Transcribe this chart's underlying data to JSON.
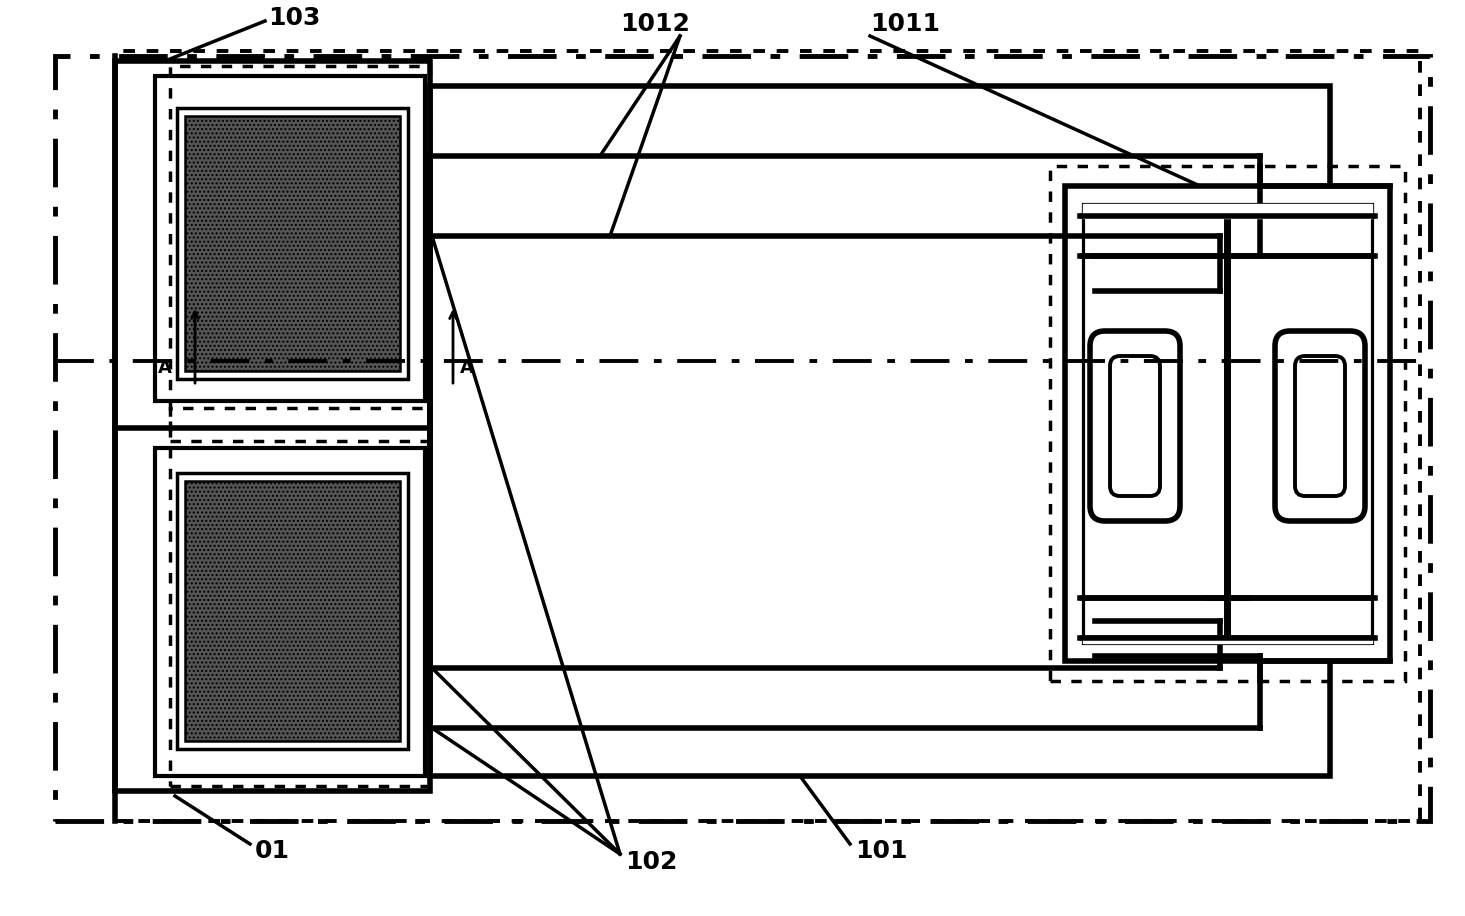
{
  "bg_color": "#ffffff",
  "line_color": "#000000",
  "lw_thick": 4.0,
  "lw_med": 2.5,
  "lw_thin": 1.8,
  "fig_width": 14.65,
  "fig_height": 9.16,
  "dpi": 100
}
